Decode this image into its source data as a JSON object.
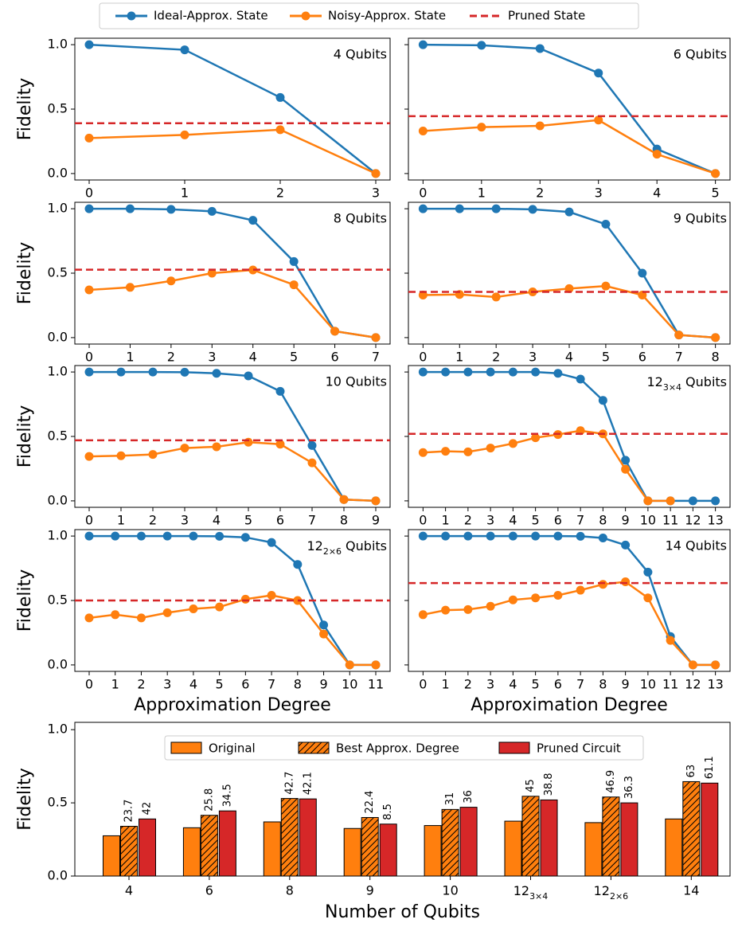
{
  "legend": {
    "series": [
      {
        "name": "Ideal-Approx. State",
        "color": "#1f77b4",
        "marker": true,
        "dashed": false
      },
      {
        "name": "Noisy-Approx. State",
        "color": "#ff7f0e",
        "marker": true,
        "dashed": false
      },
      {
        "name": "Pruned State",
        "color": "#d62728",
        "marker": false,
        "dashed": true
      }
    ]
  },
  "chart_data": [
    {
      "type": "line",
      "title": "4 Qubits",
      "ylabel": "Fidelity",
      "show_ytick_labels": true,
      "x": [
        0,
        1,
        2,
        3
      ],
      "xticks": [
        0,
        1,
        2,
        3
      ],
      "xlim": [
        -0.15,
        3.15
      ],
      "ylim": [
        -0.05,
        1.05
      ],
      "yticks": [
        {
          "value": 0,
          "label": "0.0"
        },
        {
          "value": 0.5,
          "label": "0.5"
        },
        {
          "value": 1,
          "label": "1.0"
        }
      ],
      "series": [
        {
          "values": [
            1.0,
            0.96,
            0.59,
            0.0
          ]
        },
        {
          "values": [
            0.275,
            0.3,
            0.34,
            0.0
          ]
        }
      ],
      "pruned": 0.39
    },
    {
      "type": "line",
      "title": "6 Qubits",
      "show_ytick_labels": false,
      "x": [
        0,
        1,
        2,
        3,
        4,
        5
      ],
      "xticks": [
        0,
        1,
        2,
        3,
        4,
        5
      ],
      "xlim": [
        -0.25,
        5.25
      ],
      "ylim": [
        -0.05,
        1.05
      ],
      "yticks": [
        {
          "value": 0,
          "label": "0.0"
        },
        {
          "value": 0.5,
          "label": "0.5"
        },
        {
          "value": 1,
          "label": "1.0"
        }
      ],
      "series": [
        {
          "values": [
            1.0,
            0.995,
            0.97,
            0.78,
            0.19,
            0.0
          ]
        },
        {
          "values": [
            0.33,
            0.36,
            0.37,
            0.415,
            0.15,
            0.0
          ]
        }
      ],
      "pruned": 0.445
    },
    {
      "type": "line",
      "title": "8 Qubits",
      "ylabel": "Fidelity",
      "show_ytick_labels": true,
      "x": [
        0,
        1,
        2,
        3,
        4,
        5,
        6,
        7
      ],
      "xticks": [
        0,
        1,
        2,
        3,
        4,
        5,
        6,
        7
      ],
      "xlim": [
        -0.35,
        7.35
      ],
      "ylim": [
        -0.05,
        1.05
      ],
      "yticks": [
        {
          "value": 0,
          "label": "0.0"
        },
        {
          "value": 0.5,
          "label": "0.5"
        },
        {
          "value": 1,
          "label": "1.0"
        }
      ],
      "series": [
        {
          "values": [
            1.0,
            1.0,
            0.995,
            0.98,
            0.91,
            0.59,
            0.05,
            0.0
          ]
        },
        {
          "values": [
            0.37,
            0.39,
            0.44,
            0.5,
            0.525,
            0.41,
            0.05,
            0.0
          ]
        }
      ],
      "pruned": 0.527
    },
    {
      "type": "line",
      "title": "9 Qubits",
      "show_ytick_labels": false,
      "x": [
        0,
        1,
        2,
        3,
        4,
        5,
        6,
        7,
        8
      ],
      "xticks": [
        0,
        1,
        2,
        3,
        4,
        5,
        6,
        7,
        8
      ],
      "xlim": [
        -0.4,
        8.4
      ],
      "ylim": [
        -0.05,
        1.05
      ],
      "yticks": [
        {
          "value": 0,
          "label": "0.0"
        },
        {
          "value": 0.5,
          "label": "0.5"
        },
        {
          "value": 1,
          "label": "1.0"
        }
      ],
      "series": [
        {
          "values": [
            1.0,
            1.0,
            1.0,
            0.995,
            0.975,
            0.88,
            0.5,
            0.02,
            0.0
          ]
        },
        {
          "values": [
            0.33,
            0.335,
            0.315,
            0.355,
            0.38,
            0.4,
            0.33,
            0.02,
            0.0
          ]
        }
      ],
      "pruned": 0.355
    },
    {
      "type": "line",
      "title": "10 Qubits",
      "ylabel": "Fidelity",
      "show_ytick_labels": true,
      "x": [
        0,
        1,
        2,
        3,
        4,
        5,
        6,
        7,
        8,
        9
      ],
      "xticks": [
        0,
        1,
        2,
        3,
        4,
        5,
        6,
        7,
        8,
        9
      ],
      "xlim": [
        -0.45,
        9.45
      ],
      "ylim": [
        -0.05,
        1.05
      ],
      "yticks": [
        {
          "value": 0,
          "label": "0.0"
        },
        {
          "value": 0.5,
          "label": "0.5"
        },
        {
          "value": 1,
          "label": "1.0"
        }
      ],
      "series": [
        {
          "values": [
            1.0,
            1.0,
            1.0,
            0.998,
            0.99,
            0.97,
            0.85,
            0.43,
            0.01,
            0.0
          ]
        },
        {
          "values": [
            0.345,
            0.35,
            0.36,
            0.41,
            0.42,
            0.455,
            0.44,
            0.295,
            0.01,
            0.0
          ]
        }
      ],
      "pruned": 0.47
    },
    {
      "type": "line",
      "title": {
        "main": "12",
        "sub": "3×4",
        "rest": "Qubits"
      },
      "show_ytick_labels": false,
      "x": [
        0,
        1,
        2,
        3,
        4,
        5,
        6,
        7,
        8,
        9,
        10,
        11,
        12,
        13
      ],
      "xticks": [
        0,
        1,
        2,
        3,
        4,
        5,
        6,
        7,
        8,
        9,
        10,
        11,
        12,
        13
      ],
      "xlim": [
        -0.65,
        13.65
      ],
      "ylim": [
        -0.05,
        1.05
      ],
      "yticks": [
        {
          "value": 0,
          "label": "0.0"
        },
        {
          "value": 0.5,
          "label": "0.5"
        },
        {
          "value": 1,
          "label": "1.0"
        }
      ],
      "series": [
        {
          "values": [
            1.0,
            1.0,
            1.0,
            1.0,
            1.0,
            1.0,
            0.99,
            0.945,
            0.78,
            0.315,
            0.0,
            0.0,
            0.0,
            0.0
          ]
        },
        {
          "values": [
            0.375,
            0.385,
            0.38,
            0.41,
            0.445,
            0.49,
            0.515,
            0.545,
            0.52,
            0.245,
            0.0,
            0.0,
            null,
            null
          ]
        }
      ],
      "pruned": 0.52
    },
    {
      "type": "line",
      "title": {
        "main": "12",
        "sub": "2×6",
        "rest": "Qubits"
      },
      "ylabel": "Fidelity",
      "xlabel": "Approximation Degree",
      "show_ytick_labels": true,
      "x": [
        0,
        1,
        2,
        3,
        4,
        5,
        6,
        7,
        8,
        9,
        10,
        11
      ],
      "xticks": [
        0,
        1,
        2,
        3,
        4,
        5,
        6,
        7,
        8,
        9,
        10,
        11
      ],
      "xlim": [
        -0.55,
        11.55
      ],
      "ylim": [
        -0.05,
        1.05
      ],
      "yticks": [
        {
          "value": 0,
          "label": "0.0"
        },
        {
          "value": 0.5,
          "label": "0.5"
        },
        {
          "value": 1,
          "label": "1.0"
        }
      ],
      "series": [
        {
          "values": [
            1.0,
            1.0,
            1.0,
            1.0,
            1.0,
            0.998,
            0.99,
            0.95,
            0.78,
            0.31,
            0.0,
            0.0
          ]
        },
        {
          "values": [
            0.365,
            0.39,
            0.365,
            0.405,
            0.435,
            0.45,
            0.51,
            0.54,
            0.5,
            0.24,
            0.0,
            0.0
          ]
        }
      ],
      "pruned": 0.5
    },
    {
      "type": "line",
      "title": "14 Qubits",
      "xlabel": "Approximation Degree",
      "show_ytick_labels": false,
      "x": [
        0,
        1,
        2,
        3,
        4,
        5,
        6,
        7,
        8,
        9,
        10,
        11,
        12,
        13
      ],
      "xticks": [
        0,
        1,
        2,
        3,
        4,
        5,
        6,
        7,
        8,
        9,
        10,
        11,
        12,
        13
      ],
      "xlim": [
        -0.65,
        13.65
      ],
      "ylim": [
        -0.05,
        1.05
      ],
      "yticks": [
        {
          "value": 0,
          "label": "0.0"
        },
        {
          "value": 0.5,
          "label": "0.5"
        },
        {
          "value": 1,
          "label": "1.0"
        }
      ],
      "series": [
        {
          "values": [
            1.0,
            1.0,
            1.0,
            1.0,
            1.0,
            1.0,
            1.0,
            0.998,
            0.985,
            0.93,
            0.72,
            0.22,
            0.0,
            0.0
          ]
        },
        {
          "values": [
            0.39,
            0.425,
            0.43,
            0.455,
            0.505,
            0.52,
            0.54,
            0.58,
            0.625,
            0.645,
            0.52,
            0.19,
            0.0,
            0.0
          ]
        }
      ],
      "pruned": 0.635
    },
    {
      "type": "bar",
      "ylabel": "Fidelity",
      "xlabel": "Number of Qubits",
      "legend": "upper center",
      "categories": [
        "4",
        "6",
        "8",
        "9",
        "10",
        {
          "main": "12",
          "sub": "3×4"
        },
        {
          "main": "12",
          "sub": "2×6"
        },
        "14"
      ],
      "ylim": [
        0,
        1.05
      ],
      "yticks": [
        {
          "value": 0,
          "label": "0.0"
        },
        {
          "value": 0.5,
          "label": "0.5"
        },
        {
          "value": 1,
          "label": "1.0"
        }
      ],
      "series": [
        {
          "name": "Original",
          "color": "#ff7f0e",
          "hatch": false,
          "values": [
            0.275,
            0.33,
            0.37,
            0.325,
            0.345,
            0.375,
            0.365,
            0.39
          ]
        },
        {
          "name": "Best Approx. Degree",
          "color": "#ff7f0e",
          "hatch": true,
          "values": [
            0.34,
            0.415,
            0.53,
            0.4,
            0.455,
            0.545,
            0.54,
            0.645
          ],
          "annotations": [
            23.7,
            25.8,
            42.7,
            22.4,
            31,
            45,
            46.9,
            63
          ]
        },
        {
          "name": "Pruned Circuit",
          "color": "#d62728",
          "hatch": false,
          "values": [
            0.39,
            0.445,
            0.527,
            0.355,
            0.47,
            0.52,
            0.5,
            0.635
          ],
          "annotations": [
            42,
            34.5,
            42.1,
            8.5,
            36,
            38.8,
            36.3,
            61.1
          ]
        }
      ]
    }
  ]
}
